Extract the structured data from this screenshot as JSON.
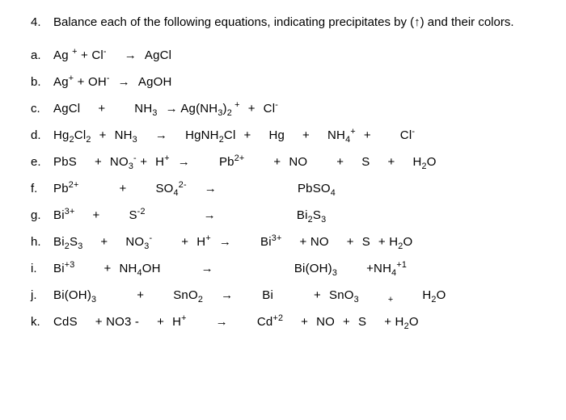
{
  "question": {
    "number": "4.",
    "text": "Balance each of the following equations, indicating precipitates by (↑) and their colors."
  },
  "equations": [
    {
      "label": "a.",
      "html": "Ag <sup>+</sup> + Cl<sup>-</sup><span class='sp2'></span>→<span class='sp1'></span>AgCl"
    },
    {
      "label": "b.",
      "html": "Ag<sup>+</sup> + OH<sup>-</sup><span class='sp1'></span>→<span class='sp1'></span>AgOH"
    },
    {
      "label": "c.",
      "html": "AgCl<span class='sp2'></span>+<span class='sp3'></span>NH<sub>3</sub><span class='sp1'></span>→ Ag(NH<sub>3</sub>)<sub>2</sub><sup> +</sup><span class='sp1'></span>+<span class='sp1'></span>Cl<sup>-</sup>"
    },
    {
      "label": "d.",
      "html": "Hg<sub>2</sub>Cl<sub>2</sub><span class='sp1'></span>+<span class='sp1'></span>NH<sub>3</sub><span class='sp2'></span>→<span class='sp2'></span>HgNH<sub>2</sub>Cl<span class='sp1'></span>+<span class='sp2'></span>Hg<span class='sp2'></span>+<span class='sp2'></span>NH<sub>4</sub><sup>+</sup><span class='sp1'></span>+<span class='sp3'></span>Cl<sup>-</sup>"
    },
    {
      "label": "e.",
      "html": "PbS<span class='sp2'></span>+<span class='sp1'></span>NO<sub>3</sub><sup>-</sup> +<span class='sp1'></span>H<sup>+</sup><span class='sp1'></span>→<span class='sp3'></span>Pb<sup>2+</sup><span class='sp3'></span>+<span class='sp1'></span>NO<span class='sp3'></span>+<span class='sp2'></span>S<span class='sp2'></span>+<span class='sp2'></span>H<sub>2</sub>O"
    },
    {
      "label": "f.",
      "html": "Pb<sup>2+</sup><span class='sp4'></span>+<span class='sp3'></span>SO<sub>4</sub><sup>2-</sup><span class='sp2'></span>→<span class='sp4'></span><span class='sp4'></span>PbSO<sub>4</sub>"
    },
    {
      "label": "g.",
      "html": "Bi<sup>3+</sup><span class='sp2'></span>+<span class='sp3'></span>S<sup>-2</sup><span class='sp4'></span><span class='sp2'></span>→<span class='sp4'></span><span class='sp4'></span>Bi<sub>2</sub>S<sub>3</sub>"
    },
    {
      "label": "h.",
      "html": "Bi<sub>2</sub>S<sub>3</sub><span class='sp2'></span>+<span class='sp2'></span>NO<sub>3</sub><sup>-</sup><span class='sp3'></span>+<span class='sp1'></span>H<sup>+</sup><span class='sp1'></span>→<span class='sp3'></span>Bi<sup>3+</sup><span class='sp2'></span>+ NO<span class='sp2'></span>+<span class='sp1'></span>S<span class='sp1'></span>+ H<sub>2</sub>O"
    },
    {
      "label": "i.",
      "html": "Bi<sup>+3</sup><span class='sp3'></span>+<span class='sp1'></span>NH<sub>4</sub>OH<span class='sp4'></span>→<span class='sp4'></span><span class='sp4'></span>Bi(OH)<sub>3</sub><span class='sp3'></span>+NH<sub>4</sub><sup>+1</sup>"
    },
    {
      "label": "j.",
      "html": "Bi(OH)<sub>3</sub><span class='sp4'></span>+<span class='sp3'></span>SnO<sub>2</sub><span class='sp2'></span>→<span class='sp3'></span>Bi<span class='sp4'></span>+<span class='sp1'></span>SnO<sub>3</sub><span class='sp3'></span><sub>+</sub><span class='sp3'></span>H<sub>2</sub>O"
    },
    {
      "label": "k.",
      "html": "CdS<span class='sp2'></span>+ NO3 -<span class='sp2'></span>+<span class='sp1'></span>H<sup>+</sup><span class='sp3'></span>→<span class='sp3'></span>Cd<sup>+2</sup><span class='sp2'></span>+<span class='sp1'></span>NO<span class='sp1'></span>+<span class='sp1'></span>S<span class='sp2'></span>+ H<sub>2</sub>O"
    }
  ],
  "colors": {
    "text": "#000000",
    "background": "#ffffff"
  },
  "typography": {
    "font_family": "Arial, Helvetica, sans-serif",
    "base_size": 15
  }
}
